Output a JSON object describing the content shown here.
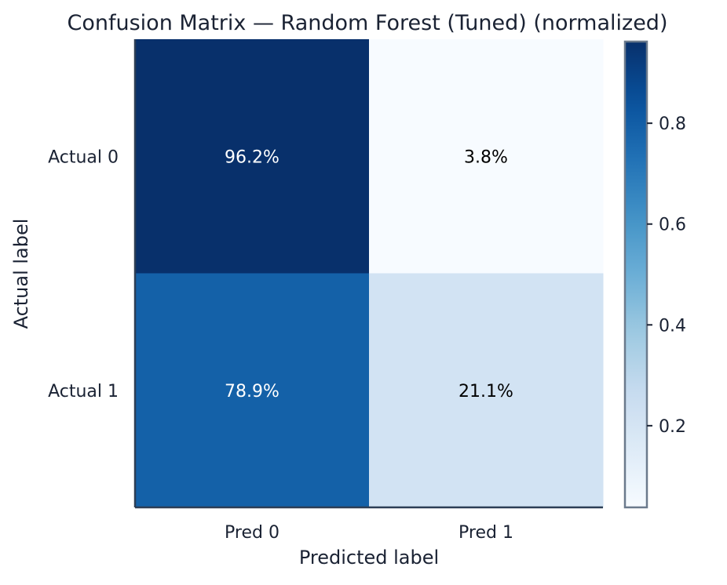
{
  "chart_data": {
    "type": "heatmap",
    "title": "Confusion Matrix — Random Forest (Tuned) (normalized)",
    "xlabel": "Predicted label",
    "ylabel": "Actual label",
    "x_categories": [
      "Pred 0",
      "Pred 1"
    ],
    "y_categories": [
      "Actual 0",
      "Actual 1"
    ],
    "values": [
      [
        0.962,
        0.038
      ],
      [
        0.789,
        0.211
      ]
    ],
    "cell_labels": [
      [
        "96.2%",
        "3.8%"
      ],
      [
        "78.9%",
        "21.1%"
      ]
    ],
    "colormap": "Blues",
    "colorbar": {
      "range": [
        0.038,
        0.962
      ],
      "ticks": [
        0.2,
        0.4,
        0.6,
        0.8
      ],
      "tick_labels": [
        "0.2",
        "0.4",
        "0.6",
        "0.8"
      ],
      "placement": "right"
    },
    "grid": false
  },
  "colors": {
    "text": "#1a2233",
    "spine": "#2c3e55",
    "colorbar_border": "#6b7a8c",
    "cell_text_dark": "#000000",
    "cell_text_light": "#ffffff"
  }
}
